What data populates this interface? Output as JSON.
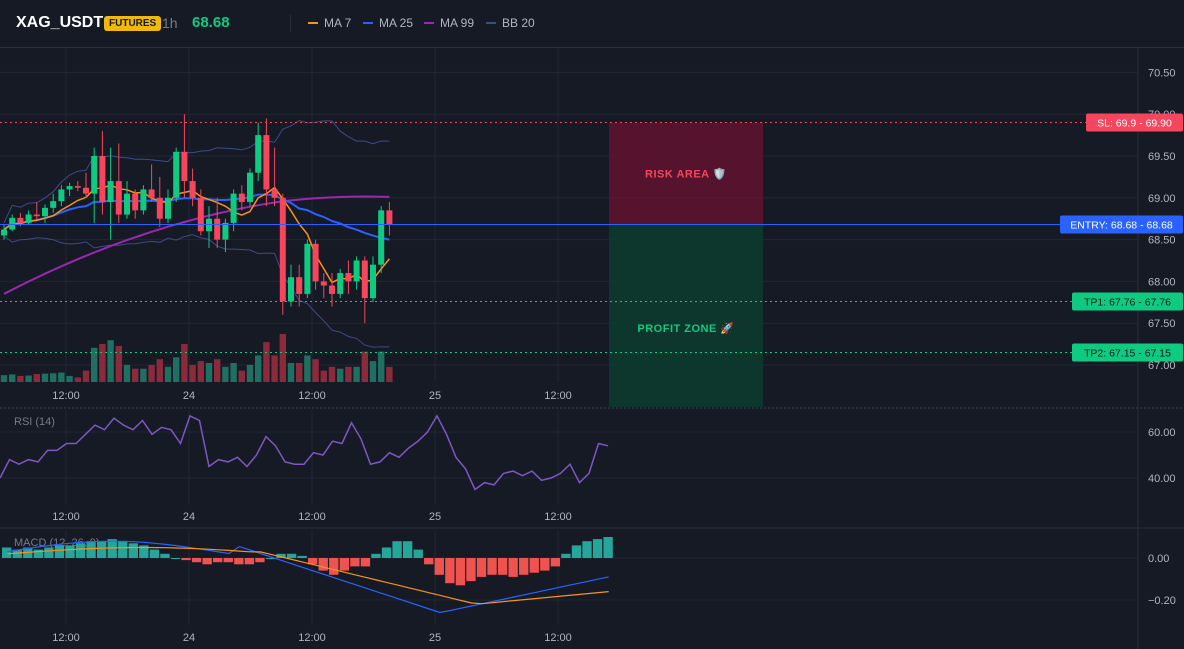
{
  "header": {
    "symbol": "XAG_USDT",
    "badge": "FUTURES",
    "timeframe": "1h",
    "price": "68.68",
    "indicators": [
      {
        "label": "MA 7",
        "color": "#f7931a"
      },
      {
        "label": "MA 25",
        "color": "#2962ff"
      },
      {
        "label": "MA 99",
        "color": "#9c27b0"
      },
      {
        "label": "BB 20",
        "color": "#3a4c8a"
      }
    ]
  },
  "colors": {
    "up": "#0ecb81",
    "down": "#f6465d",
    "bg": "#161a25",
    "grid": "#232733",
    "sl": "#f6465d",
    "entry": "#2962ff",
    "tp": "#0ecb81"
  },
  "main_pane": {
    "y_ticks": [
      "70.50",
      "70.00",
      "69.50",
      "69.00",
      "68.50",
      "68.00",
      "67.50",
      "67.00"
    ],
    "x_ticks": [
      "12:00",
      "24",
      "12:00",
      "25",
      "12:00"
    ],
    "levels": {
      "sl": {
        "label": "SL: 69.9 - 69.90",
        "value": 69.9
      },
      "entry": {
        "label": "ENTRY: 68.68 - 68.68",
        "value": 68.68
      },
      "tp1": {
        "label": "TP1: 67.76 - 67.76",
        "value": 67.76
      },
      "tp2": {
        "label": "TP2: 67.15 - 67.15",
        "value": 67.15
      }
    },
    "risk_label": "RISK AREA 🛡️",
    "profit_label": "PROFIT ZONE 🚀"
  },
  "rsi_pane": {
    "title": "RSI (14)",
    "y_ticks": [
      "60.00",
      "40.00"
    ],
    "x_ticks": [
      "12:00",
      "24",
      "12:00",
      "25",
      "12:00"
    ],
    "color": "#7e57c2"
  },
  "macd_pane": {
    "title": "MACD (12, 26, 9)",
    "y_ticks": [
      "0.00",
      "−0.20"
    ],
    "x_ticks": [
      "12:00",
      "24",
      "12:00",
      "25",
      "12:00"
    ]
  },
  "chart_data": [
    {
      "type": "candlestick",
      "title": "XAG_USDT 1h",
      "ylim": [
        66.8,
        70.7
      ],
      "candles": [
        [
          68.55,
          68.68,
          68.5,
          68.62
        ],
        [
          68.62,
          68.8,
          68.6,
          68.76
        ],
        [
          68.76,
          68.82,
          68.66,
          68.7
        ],
        [
          68.7,
          68.85,
          68.68,
          68.8
        ],
        [
          68.8,
          68.95,
          68.74,
          68.78
        ],
        [
          68.78,
          68.92,
          68.7,
          68.88
        ],
        [
          68.88,
          69.05,
          68.82,
          68.96
        ],
        [
          68.96,
          69.15,
          68.9,
          69.1
        ],
        [
          69.1,
          69.18,
          69.02,
          69.14
        ],
        [
          69.14,
          69.2,
          69.08,
          69.12
        ],
        [
          69.12,
          69.3,
          69.0,
          69.05
        ],
        [
          69.05,
          69.6,
          68.7,
          69.5
        ],
        [
          69.5,
          69.8,
          68.8,
          68.95
        ],
        [
          68.95,
          69.6,
          68.5,
          69.2
        ],
        [
          69.2,
          69.65,
          68.7,
          68.8
        ],
        [
          68.8,
          69.2,
          68.75,
          69.05
        ],
        [
          69.05,
          69.1,
          68.75,
          68.85
        ],
        [
          68.85,
          69.15,
          68.8,
          69.1
        ],
        [
          69.1,
          69.4,
          68.95,
          69.0
        ],
        [
          69.0,
          69.25,
          68.65,
          68.75
        ],
        [
          68.75,
          69.1,
          68.7,
          69.0
        ],
        [
          69.0,
          69.6,
          68.95,
          69.55
        ],
        [
          69.55,
          70.0,
          69.0,
          69.2
        ],
        [
          69.2,
          69.35,
          68.9,
          69.0
        ],
        [
          69.0,
          69.1,
          68.55,
          68.6
        ],
        [
          68.6,
          68.9,
          68.4,
          68.75
        ],
        [
          68.75,
          69.0,
          68.4,
          68.5
        ],
        [
          68.5,
          68.75,
          68.35,
          68.7
        ],
        [
          68.7,
          69.1,
          68.6,
          69.05
        ],
        [
          69.05,
          69.15,
          68.85,
          68.95
        ],
        [
          68.95,
          69.35,
          68.9,
          69.3
        ],
        [
          69.3,
          69.9,
          69.2,
          69.75
        ],
        [
          69.75,
          69.95,
          68.9,
          69.1
        ],
        [
          69.1,
          69.6,
          68.9,
          69.0
        ],
        [
          69.0,
          69.05,
          67.6,
          67.76
        ],
        [
          67.76,
          68.2,
          67.7,
          68.05
        ],
        [
          68.05,
          68.2,
          67.7,
          67.85
        ],
        [
          67.85,
          68.5,
          67.8,
          68.45
        ],
        [
          68.45,
          68.5,
          67.9,
          68.0
        ],
        [
          68.0,
          68.1,
          67.8,
          67.95
        ],
        [
          67.95,
          68.1,
          67.7,
          67.85
        ],
        [
          67.85,
          68.15,
          67.8,
          68.1
        ],
        [
          68.1,
          68.25,
          67.85,
          68.0
        ],
        [
          68.0,
          68.3,
          67.9,
          68.25
        ],
        [
          68.25,
          68.3,
          67.5,
          67.8
        ],
        [
          67.8,
          68.3,
          67.75,
          68.2
        ],
        [
          68.2,
          68.9,
          68.1,
          68.85
        ],
        [
          68.85,
          68.95,
          68.55,
          68.68
        ]
      ]
    },
    {
      "type": "line",
      "title": "RSI (14)",
      "values": [
        40,
        48,
        46,
        48,
        47,
        52,
        52,
        55,
        55,
        59,
        63,
        61,
        66,
        63,
        61,
        65,
        59,
        62,
        61,
        55,
        67,
        65,
        45,
        48,
        47,
        49,
        45,
        50,
        58,
        54,
        47,
        46,
        46,
        51,
        50,
        56,
        55,
        64,
        57,
        46,
        47,
        51,
        49,
        53,
        56,
        60,
        67,
        59,
        49,
        44,
        35,
        38,
        37,
        42,
        43,
        41,
        43,
        39,
        40,
        42,
        46,
        38,
        42,
        55,
        54
      ]
    },
    {
      "type": "bar",
      "title": "MACD (12, 26, 9)",
      "values": [
        0.05,
        0.04,
        0.05,
        0.04,
        0.05,
        0.06,
        0.06,
        0.07,
        0.08,
        0.08,
        0.09,
        0.08,
        0.07,
        0.06,
        0.04,
        0.02,
        0.0,
        -0.01,
        -0.02,
        -0.03,
        -0.02,
        -0.02,
        -0.03,
        -0.03,
        -0.02,
        0.0,
        0.02,
        0.02,
        0.01,
        -0.03,
        -0.06,
        -0.08,
        -0.06,
        -0.04,
        -0.04,
        0.02,
        0.05,
        0.08,
        0.08,
        0.04,
        -0.03,
        -0.08,
        -0.12,
        -0.13,
        -0.11,
        -0.09,
        -0.08,
        -0.08,
        -0.09,
        -0.08,
        -0.07,
        -0.06,
        -0.04,
        0.02,
        0.06,
        0.08,
        0.09,
        0.1
      ]
    }
  ]
}
